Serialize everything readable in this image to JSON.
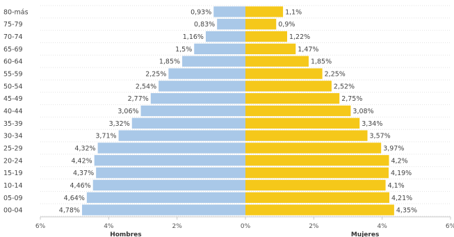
{
  "chart_data": {
    "type": "bar",
    "orientation": "horizontal",
    "layout": "population-pyramid",
    "categories": [
      "80-más",
      "75-79",
      "70-74",
      "65-69",
      "60-64",
      "55-59",
      "50-54",
      "45-49",
      "40-44",
      "35-39",
      "30-34",
      "25-29",
      "20-24",
      "15-19",
      "10-14",
      "05-09",
      "00-04"
    ],
    "series": [
      {
        "name": "Hombres",
        "color": "#a9c8e8",
        "values": [
          0.93,
          0.83,
          1.16,
          1.5,
          1.85,
          2.25,
          2.54,
          2.77,
          3.06,
          3.32,
          3.71,
          4.32,
          4.42,
          4.37,
          4.46,
          4.64,
          4.78
        ],
        "labels": [
          "0,93%",
          "0,83%",
          "1,16%",
          "1,5%",
          "1,85%",
          "2,25%",
          "2,54%",
          "2,77%",
          "3,06%",
          "3,32%",
          "3,71%",
          "4,32%",
          "4,42%",
          "4,37%",
          "4,46%",
          "4,64%",
          "4,78%"
        ]
      },
      {
        "name": "Mujeres",
        "color": "#f5c81a",
        "values": [
          1.1,
          0.9,
          1.22,
          1.47,
          1.85,
          2.25,
          2.52,
          2.75,
          3.08,
          3.34,
          3.57,
          3.97,
          4.2,
          4.19,
          4.1,
          4.21,
          4.35
        ],
        "labels": [
          "1,1%",
          "0,9%",
          "1,22%",
          "1,47%",
          "1,85%",
          "2,25%",
          "2,52%",
          "2,75%",
          "3,08%",
          "3,34%",
          "3,57%",
          "3,97%",
          "4,2%",
          "4,19%",
          "4,1%",
          "4,21%",
          "4,35%"
        ]
      }
    ],
    "xlim": [
      -6,
      6
    ],
    "x_ticks": [
      -6,
      -4,
      -2,
      0,
      2,
      4,
      6
    ],
    "x_tick_labels": [
      "6%",
      "4%",
      "2%",
      "0%",
      "2%",
      "4%",
      "6%"
    ],
    "grid": true
  }
}
